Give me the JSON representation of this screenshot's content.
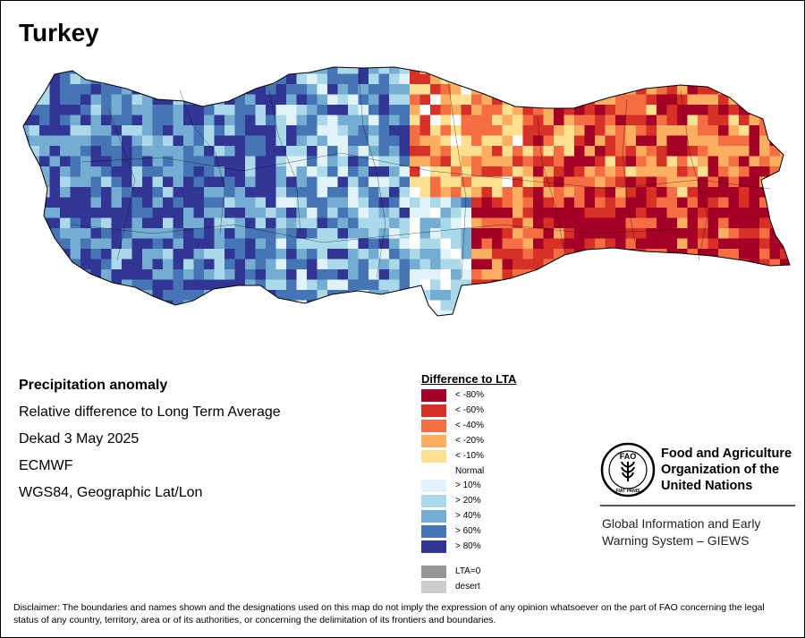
{
  "title": "Turkey",
  "info": {
    "heading": "Precipitation anomaly",
    "line1": "Relative difference to Long Term Average",
    "line2": "Dekad 3 May 2025",
    "line3": "ECMWF",
    "line4": "WGS84, Geographic Lat/Lon"
  },
  "legend": {
    "title": "Difference to LTA",
    "items": [
      {
        "label": "< -80%",
        "color": "#a50026"
      },
      {
        "label": "< -60%",
        "color": "#d73027"
      },
      {
        "label": "< -40%",
        "color": "#f46d43"
      },
      {
        "label": "< -20%",
        "color": "#fdae61"
      },
      {
        "label": "< -10%",
        "color": "#fee090"
      },
      {
        "label": "Normal",
        "color": "#ffffff"
      },
      {
        "label": "> 10%",
        "color": "#e0f3f8"
      },
      {
        "label": "> 20%",
        "color": "#abd9e9"
      },
      {
        "label": "> 40%",
        "color": "#74add1"
      },
      {
        "label": "> 60%",
        "color": "#4575b4"
      },
      {
        "label": "> 80%",
        "color": "#313695"
      },
      {
        "label": "LTA=0",
        "color": "#969696"
      },
      {
        "label": "desert",
        "color": "#cccccc"
      }
    ]
  },
  "org": {
    "name_line1": "Food and Agriculture",
    "name_line2": "Organization of the",
    "name_line3": "United Nations",
    "giews_line1": "Global Information and Early",
    "giews_line2": "Warning System – GIEWS",
    "logo_letters": "FAO",
    "logo_motto": "FIAT PANIS"
  },
  "disclaimer": "Disclaimer: The boundaries and names shown and the designations used on this map do not imply the expression of any opinion whatsoever on the part of FAO concerning the legal status of any country, territory, area or of its authorities, or concerning the delimitation of its frontiers and boundaries."
}
